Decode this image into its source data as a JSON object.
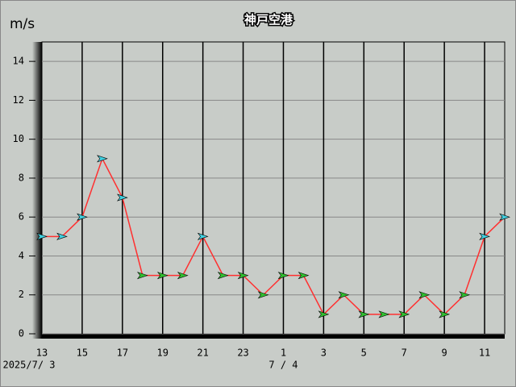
{
  "chart_data": {
    "type": "line",
    "title": "神戸空港",
    "y_unit": "m/s",
    "categories": [
      "13",
      null,
      "15",
      null,
      "17",
      null,
      "19",
      null,
      "21",
      null,
      "23",
      null,
      "1",
      null,
      "3",
      null,
      "5",
      null,
      "7",
      null,
      "9",
      null,
      "11",
      null
    ],
    "date_labels": [
      "2025/7/ 3",
      "7 / 4"
    ],
    "series": [
      {
        "color": "#ff3030",
        "values": [
          5,
          5,
          6,
          9,
          7,
          3,
          3,
          3,
          5,
          3,
          3,
          2,
          3,
          3,
          1,
          2,
          1,
          1,
          1,
          2,
          1,
          2,
          5,
          6
        ]
      }
    ],
    "ylim": [
      0,
      15
    ],
    "yticks": [
      0,
      2,
      4,
      6,
      8,
      10,
      12,
      14
    ],
    "grid": true
  }
}
